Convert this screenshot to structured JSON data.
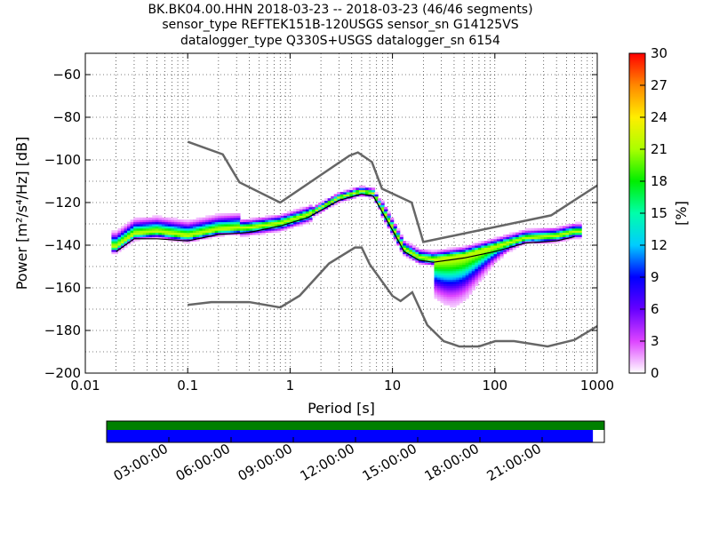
{
  "title": {
    "line1": "BK.BK04.00.HHN   2018-03-23 -- 2018-03-23  (46/46 segments)",
    "line2": "sensor_type REFTEK151B-120USGS sensor_sn G14125VS",
    "line3": "datalogger_type Q330S+USGS datalogger_sn 6154"
  },
  "chart_data": {
    "type": "heatmap",
    "xlabel": "Period [s]",
    "ylabel": "Power [m²/s⁴/Hz] [dB]",
    "xscale": "log",
    "xlim": [
      0.01,
      1000
    ],
    "ylim": [
      -200,
      -50
    ],
    "x_ticks": [
      "0.01",
      "0.1",
      "1",
      "10",
      "100",
      "1000"
    ],
    "y_ticks": [
      "−200",
      "−180",
      "−160",
      "−140",
      "−120",
      "−100",
      "−80",
      "−60"
    ],
    "colorbar": {
      "label": "[%]",
      "range": [
        0,
        30
      ],
      "ticks": [
        "0",
        "3",
        "6",
        "9",
        "12",
        "15",
        "18",
        "21",
        "24",
        "27",
        "30"
      ]
    },
    "noise_models": [
      {
        "name": "NHNM",
        "points": [
          [
            0.1,
            -91.5
          ],
          [
            0.22,
            -97.4
          ],
          [
            0.32,
            -110.5
          ],
          [
            0.8,
            -120
          ],
          [
            3.8,
            -98
          ],
          [
            4.6,
            -96.5
          ],
          [
            6.3,
            -101
          ],
          [
            7.9,
            -113.5
          ],
          [
            15.4,
            -120
          ],
          [
            20,
            -138.5
          ],
          [
            354.8,
            -126
          ],
          [
            1000,
            -112
          ]
        ]
      },
      {
        "name": "NLNM",
        "points": [
          [
            0.1,
            -168
          ],
          [
            0.17,
            -166.7
          ],
          [
            0.4,
            -166.7
          ],
          [
            0.8,
            -169.2
          ],
          [
            1.24,
            -163.7
          ],
          [
            2.4,
            -148.6
          ],
          [
            4.3,
            -141.1
          ],
          [
            5,
            -141.1
          ],
          [
            6,
            -149
          ],
          [
            10,
            -163.8
          ],
          [
            12,
            -166.2
          ],
          [
            15.6,
            -162.1
          ],
          [
            21.9,
            -177.5
          ],
          [
            31.6,
            -185
          ],
          [
            45,
            -187.5
          ],
          [
            70,
            -187.5
          ],
          [
            101,
            -185
          ],
          [
            154,
            -185
          ],
          [
            328,
            -187.5
          ],
          [
            600,
            -184.4
          ],
          [
            1000,
            -178
          ]
        ]
      }
    ],
    "psd_curves": [
      {
        "name": "mode",
        "points": [
          [
            0.02,
            -141
          ],
          [
            0.03,
            -135
          ],
          [
            0.05,
            -134
          ],
          [
            0.1,
            -136
          ],
          [
            0.2,
            -133
          ],
          [
            0.4,
            -132
          ],
          [
            0.8,
            -130
          ],
          [
            1.5,
            -126
          ],
          [
            3,
            -118
          ],
          [
            5,
            -115
          ],
          [
            6.5,
            -116
          ],
          [
            10,
            -132
          ],
          [
            13,
            -142
          ],
          [
            18,
            -146
          ],
          [
            25,
            -147
          ],
          [
            50,
            -145
          ],
          [
            100,
            -141
          ],
          [
            200,
            -137
          ],
          [
            400,
            -136
          ],
          [
            600,
            -134
          ]
        ]
      },
      {
        "name": "mean",
        "points": [
          [
            0.02,
            -143
          ],
          [
            0.03,
            -137
          ],
          [
            0.05,
            -137
          ],
          [
            0.1,
            -138
          ],
          [
            0.2,
            -135
          ],
          [
            0.4,
            -134
          ],
          [
            0.8,
            -131
          ],
          [
            1.5,
            -127
          ],
          [
            3,
            -119
          ],
          [
            5,
            -116
          ],
          [
            6.5,
            -117
          ],
          [
            10,
            -133
          ],
          [
            13,
            -143
          ],
          [
            18,
            -147
          ],
          [
            25,
            -148
          ],
          [
            50,
            -146
          ],
          [
            100,
            -143
          ],
          [
            200,
            -139
          ],
          [
            400,
            -138
          ],
          [
            600,
            -136
          ]
        ]
      }
    ],
    "availability": {
      "time_ticks": [
        "03:00:00",
        "06:00:00",
        "09:00:00",
        "12:00:00",
        "15:00:00",
        "18:00:00",
        "21:00:00"
      ],
      "data_fraction": 0.977,
      "bar_color": "#0000ff",
      "gap_bar_color": "#008000"
    }
  }
}
